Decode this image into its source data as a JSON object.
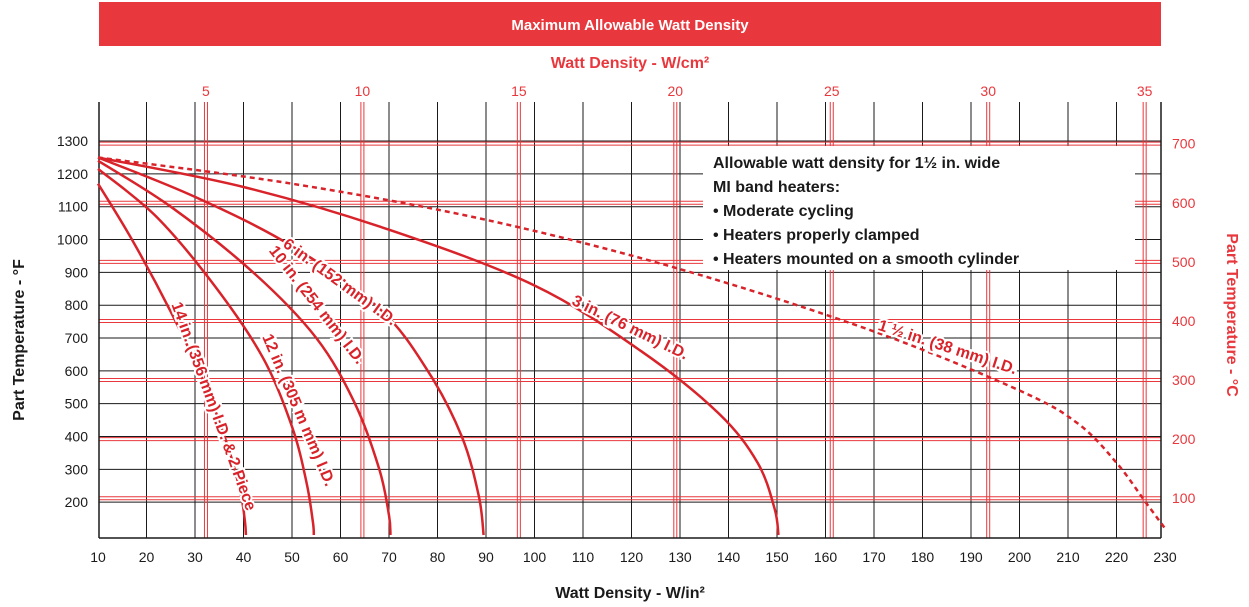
{
  "colors": {
    "red": "#e8383d",
    "curve_red": "#d8232a",
    "black": "#1a1a1a",
    "white": "#ffffff"
  },
  "chart_data": {
    "type": "line",
    "title": "Maximum Allowable Watt Density",
    "x_top_label": "Watt Density - W/cm²",
    "xlabel": "Watt Density - W/in²",
    "ylabel_left": "Part Temperature - °F",
    "ylabel_right": "Part Temperature - °C",
    "x_ticks": [
      10,
      20,
      30,
      40,
      50,
      60,
      70,
      80,
      90,
      100,
      110,
      120,
      130,
      140,
      150,
      160,
      170,
      180,
      190,
      200,
      210,
      220,
      230
    ],
    "x_top_ticks": [
      5,
      10,
      15,
      20,
      25,
      30,
      35
    ],
    "y_ticks_left": [
      200,
      300,
      400,
      500,
      600,
      700,
      800,
      900,
      1000,
      1100,
      1200,
      1300
    ],
    "y_ticks_right": [
      100,
      200,
      300,
      400,
      500,
      600,
      700
    ],
    "xlim": [
      10,
      230
    ],
    "ylim": [
      100,
      1350
    ],
    "grid": true,
    "note": [
      "Allowable watt density for 1½ in. wide",
      "MI band heaters:",
      "•  Moderate cycling",
      "•  Heaters properly clamped",
      "•  Heaters mounted on a smooth cylinder"
    ],
    "series": [
      {
        "name": "14 in. (356 mm) I.D. & 2 Piece",
        "style": "solid",
        "x": [
          10,
          17,
          25,
          32,
          37,
          39.5,
          40.3,
          40.5
        ],
        "y": [
          1170,
          1000,
          780,
          560,
          360,
          220,
          140,
          100
        ]
      },
      {
        "name": "12 in. (305 m mm) I.D.",
        "style": "solid",
        "x": [
          10,
          22,
          34,
          44,
          50,
          53,
          54.3,
          54.5
        ],
        "y": [
          1215,
          1070,
          860,
          640,
          430,
          260,
          140,
          100
        ]
      },
      {
        "name": "10 in. (254 mm) I.D.",
        "style": "solid",
        "x": [
          10,
          25,
          42,
          55,
          63,
          68,
          70,
          70.3
        ],
        "y": [
          1240,
          1100,
          900,
          700,
          500,
          300,
          160,
          100
        ]
      },
      {
        "name": "6 in. (152 mm) I.D.",
        "style": "solid",
        "x": [
          10,
          30,
          50,
          68,
          78,
          85,
          88.5,
          89.5
        ],
        "y": [
          1250,
          1130,
          980,
          790,
          600,
          400,
          220,
          100
        ]
      },
      {
        "name": "3 in. (76 mm) I.D.",
        "style": "solid",
        "x": [
          10,
          40,
          70,
          100,
          122,
          138,
          146,
          149.5,
          150.3
        ],
        "y": [
          1250,
          1160,
          1030,
          860,
          660,
          470,
          320,
          180,
          100
        ]
      },
      {
        "name": "1 ½ in. (38 mm) I.D.",
        "style": "dashed",
        "x": [
          10,
          50,
          90,
          130,
          170,
          200,
          212,
          220,
          226,
          230
        ],
        "y": [
          1250,
          1170,
          1060,
          910,
          720,
          540,
          440,
          320,
          200,
          120
        ]
      }
    ]
  }
}
